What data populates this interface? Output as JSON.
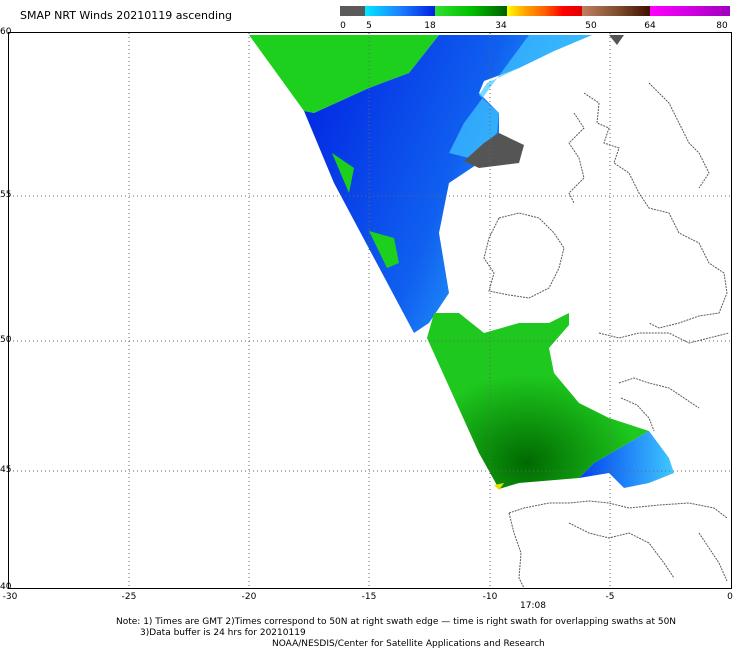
{
  "title": "SMAP NRT Winds 20210119 ascending",
  "colorbar": {
    "labels": [
      "0",
      "5",
      "18",
      "34",
      "50",
      "64",
      "80"
    ],
    "colors": [
      "#606060",
      "#1c80ff",
      "#00d000",
      "#f0e000",
      "#e83000",
      "#804020",
      "#d000ff"
    ]
  },
  "map": {
    "lat_labels": [
      "60",
      "55",
      "50",
      "45",
      "40"
    ],
    "lon_labels": [
      "-30",
      "-25",
      "-20",
      "-15",
      "-10",
      "-5",
      "0"
    ],
    "time_label": "17:08",
    "lon_range": [
      -30,
      0
    ],
    "lat_range": [
      40,
      60
    ],
    "grid": true
  },
  "notes": {
    "line1": "Note: 1) Times are GMT 2)Times correspond to 50N at right swath edge — time is right swath for overlapping swaths at 50N",
    "line2": "3)Data buffer is 24 hrs for 20210119",
    "line3": "NOAA/NESDIS/Center for Satellite Applications and Research"
  }
}
